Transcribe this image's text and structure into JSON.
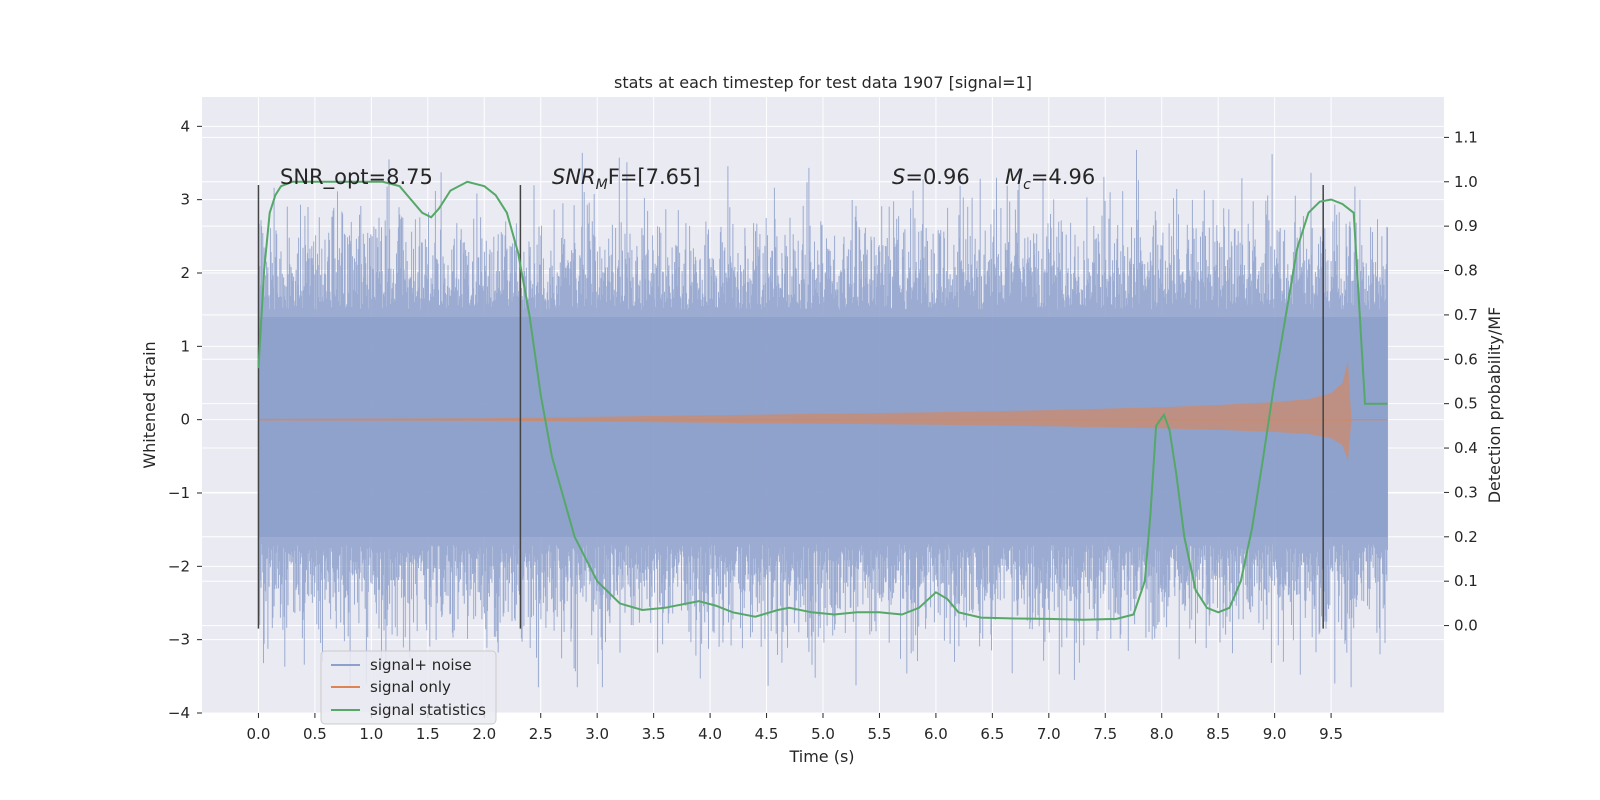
{
  "chart_data": {
    "type": "line",
    "title": "stats at each timestep for test data 1907 [signal=1]",
    "xlabel": "Time (s)",
    "ylabel": "Whitened strain",
    "y2label": "Detection probability/MF",
    "xlim": [
      -0.5,
      10.5
    ],
    "ylim": [
      -4.0,
      4.4
    ],
    "y2lim": [
      -0.197,
      1.191
    ],
    "xticks": [
      "0.0",
      "0.5",
      "1.0",
      "1.5",
      "2.0",
      "2.5",
      "3.0",
      "3.5",
      "4.0",
      "4.5",
      "5.0",
      "5.5",
      "6.0",
      "6.5",
      "7.0",
      "7.5",
      "8.0",
      "8.5",
      "9.0",
      "9.5"
    ],
    "yticks": [
      "4",
      "3",
      "2",
      "1",
      "0",
      "−1",
      "−2",
      "−3",
      "−4"
    ],
    "y2ticks": [
      "1.1",
      "1.0",
      "0.9",
      "0.8",
      "0.7",
      "0.6",
      "0.5",
      "0.4",
      "0.3",
      "0.2",
      "0.1",
      "0.0"
    ],
    "annotations": {
      "snr_opt": "SNR_opt=8.75",
      "snr_mf_sym": "SNR",
      "snr_mf_sub": "M",
      "snr_mf_rest": "F=[7.65]",
      "s_sym": "S",
      "s_rest": "=0.96",
      "mc_sym": "M",
      "mc_sub": "c",
      "mc_rest": "=4.96"
    },
    "vlines": [
      0.0,
      2.32,
      9.43
    ],
    "series": [
      {
        "name": "signal+ noise",
        "color": "#8da0cb",
        "noise_band": {
          "x_start": 0.0,
          "x_end": 10.0,
          "core_high": 1.4,
          "core_low": -1.6
        }
      },
      {
        "name": "signal only",
        "color": "#dd8452",
        "envelope": {
          "x": [
            0.0,
            2.0,
            3.0,
            4.0,
            5.0,
            6.0,
            7.0,
            8.0,
            8.5,
            9.0,
            9.3,
            9.5,
            9.6,
            9.65,
            9.68,
            10.0
          ],
          "amplitude": [
            0.01,
            0.02,
            0.04,
            0.06,
            0.08,
            0.1,
            0.13,
            0.17,
            0.2,
            0.24,
            0.28,
            0.36,
            0.5,
            0.8,
            0.0,
            0.0
          ]
        }
      },
      {
        "name": "signal statistics",
        "color": "#55a868",
        "x": [
          0.0,
          0.05,
          0.1,
          0.15,
          0.2,
          0.3,
          0.5,
          0.8,
          1.1,
          1.25,
          1.35,
          1.45,
          1.53,
          1.6,
          1.7,
          1.85,
          2.0,
          2.1,
          2.2,
          2.3,
          2.4,
          2.5,
          2.6,
          2.8,
          3.0,
          3.2,
          3.4,
          3.6,
          3.8,
          3.9,
          4.05,
          4.2,
          4.4,
          4.6,
          4.7,
          4.9,
          5.1,
          5.3,
          5.5,
          5.7,
          5.85,
          6.0,
          6.1,
          6.2,
          6.4,
          6.7,
          7.0,
          7.3,
          7.6,
          7.75,
          7.85,
          7.9,
          7.95,
          8.02,
          8.07,
          8.13,
          8.2,
          8.3,
          8.4,
          8.5,
          8.6,
          8.7,
          8.8,
          8.9,
          9.0,
          9.1,
          9.2,
          9.3,
          9.4,
          9.5,
          9.6,
          9.7,
          9.8,
          9.9,
          10.0
        ],
        "values": [
          0.58,
          0.8,
          0.93,
          0.97,
          0.99,
          1.0,
          1.0,
          1.0,
          1.0,
          0.99,
          0.96,
          0.93,
          0.92,
          0.94,
          0.98,
          1.0,
          0.99,
          0.97,
          0.93,
          0.84,
          0.7,
          0.52,
          0.38,
          0.2,
          0.1,
          0.05,
          0.035,
          0.04,
          0.05,
          0.055,
          0.045,
          0.03,
          0.02,
          0.035,
          0.04,
          0.03,
          0.025,
          0.03,
          0.03,
          0.025,
          0.04,
          0.075,
          0.06,
          0.03,
          0.018,
          0.016,
          0.015,
          0.013,
          0.015,
          0.025,
          0.1,
          0.25,
          0.45,
          0.475,
          0.44,
          0.34,
          0.2,
          0.08,
          0.04,
          0.03,
          0.04,
          0.1,
          0.22,
          0.38,
          0.55,
          0.7,
          0.85,
          0.93,
          0.955,
          0.96,
          0.95,
          0.93,
          0.5,
          0.5,
          0.5
        ]
      }
    ],
    "legend_position": "lower-left"
  }
}
